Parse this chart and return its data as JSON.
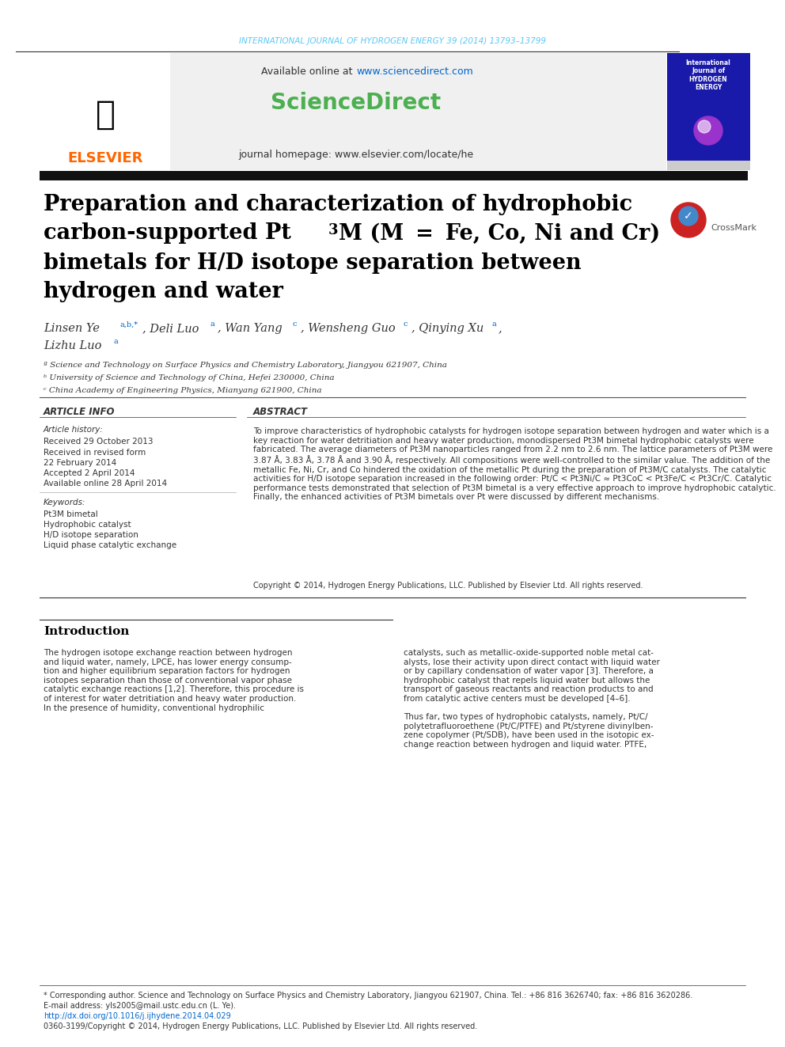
{
  "header_journal_text": "INTERNATIONAL JOURNAL OF HYDROGEN ENERGY 39 (2014) 13793–13799",
  "header_journal_color": "#5bc8f5",
  "available_online_text": "Available online at www.sciencedirect.com",
  "available_online_url_color": "#0066cc",
  "sciencedirect_text": "ScienceDirect",
  "sciencedirect_color": "#4caf50",
  "journal_homepage_text": "journal homepage: www.elsevier.com/locate/he",
  "elsevier_text": "ELSEVIER",
  "elsevier_color": "#ff6600",
  "header_bg_color": "#f0f0f0",
  "title_line1": "Preparation and characterization of hydrophobic",
  "title_line2": "carbon-supported Pt",
  "title_line2b": "3",
  "title_line2c": "M (M  =  Fe, Co, Ni and Cr)",
  "title_line3": "bimetals for H/D isotope separation between",
  "title_line4": "hydrogen and water",
  "title_color": "#000000",
  "authors_line1": "Linsen Ye ",
  "authors_sup1": "a,b,*",
  "authors_mid1": ", Deli Luo ",
  "authors_sup2": "a",
  "authors_mid2": ", Wan Yang ",
  "authors_sup3": "c",
  "authors_mid3": ", Wensheng Guo ",
  "authors_sup4": "c",
  "authors_mid4": ", Qinying Xu ",
  "authors_sup5": "a",
  "authors_mid5": ",",
  "authors_line2": "Lizhu Luo ",
  "authors_sup6": "a",
  "affil_a": "ª Science and Technology on Surface Physics and Chemistry Laboratory, Jiangyou 621907, China",
  "affil_b": "ᵇ University of Science and Technology of China, Hefei 230000, China",
  "affil_c": "ᶜ China Academy of Engineering Physics, Mianyang 621900, China",
  "article_info_title": "ARTICLE INFO",
  "article_history_title": "Article history:",
  "received1": "Received 29 October 2013",
  "received2": "Received in revised form",
  "received2b": "22 February 2014",
  "accepted": "Accepted 2 April 2014",
  "available": "Available online 28 April 2014",
  "keywords_title": "Keywords:",
  "kw1": "Pt3M bimetal",
  "kw2": "Hydrophobic catalyst",
  "kw3": "H/D isotope separation",
  "kw4": "Liquid phase catalytic exchange",
  "abstract_title": "ABSTRACT",
  "abstract_text": "To improve characteristics of hydrophobic catalysts for hydrogen isotope separation between hydrogen and water which is a key reaction for water detritiation and heavy water production, monodispersed Pt3M bimetal hydrophobic catalysts were fabricated. The average diameters of Pt3M nanoparticles ranged from 2.2 nm to 2.6 nm. The lattice parameters of Pt3M were 3.87 Å, 3.83 Å, 3.78 Å and 3.90 Å, respectively. All compositions were well-controlled to the similar value. The addition of the metallic Fe, Ni, Cr, and Co hindered the oxidation of the metallic Pt during the preparation of Pt3M/C catalysts. The catalytic activities for H/D isotope separation increased in the following order: Pt/C < Pt3Ni/C ≈ Pt3CoC < Pt3Fe/C < Pt3Cr/C. Catalytic performance tests demonstrated that selection of Pt3M bimetal is a very effective approach to improve hydrophobic catalytic. Finally, the enhanced activities of Pt3M bimetals over Pt were discussed by different mechanisms.",
  "copyright_text": "Copyright © 2014, Hydrogen Energy Publications, LLC. Published by Elsevier Ltd. All rights reserved.",
  "intro_title": "Introduction",
  "intro_col1": "The hydrogen isotope exchange reaction between hydrogen and liquid water, namely, LPCE, has lower energy consumption and higher equilibrium separation factors for hydrogen isotopes separation than those of conventional vapor phase catalytic exchange reactions [1,2]. Therefore, this procedure is of interest for water detritiation and heavy water production. In the presence of humidity, conventional hydrophilic",
  "intro_col2": "catalysts, such as metallic-oxide-supported noble metal catalysts, lose their activity upon direct contact with liquid water or by capillary condensation of water vapor [3]. Therefore, a hydrophobic catalyst that repels liquid water but allows the transport of gaseous reactants and reaction products to and from catalytic active centers must be developed [4–6].\n\nThus far, two types of hydrophobic catalysts, namely, Pt/C/polytetrafluoroethene (Pt/C/PTFE) and Pt/styrene divinylbenzene copolymer (Pt/SDB), have been used in the isotopic exchange reaction between hydrogen and liquid water. PTFE,",
  "footer_text1": "* Corresponding author. Science and Technology on Surface Physics and Chemistry Laboratory, Jiangyou 621907, China. Tel.: +86 816 3626740; fax: +86 816 3620286.",
  "footer_email": "E-mail address: yls2005@mail.ustc.edu.cn (L. Ye).",
  "footer_doi": "http://dx.doi.org/10.1016/j.ijhydene.2014.04.029",
  "footer_copyright": "0360-3199/Copyright © 2014, Hydrogen Energy Publications, LLC. Published by Elsevier Ltd. All rights reserved.",
  "page_bg": "#ffffff",
  "separator_color": "#000000",
  "thin_line_color": "#cccccc"
}
